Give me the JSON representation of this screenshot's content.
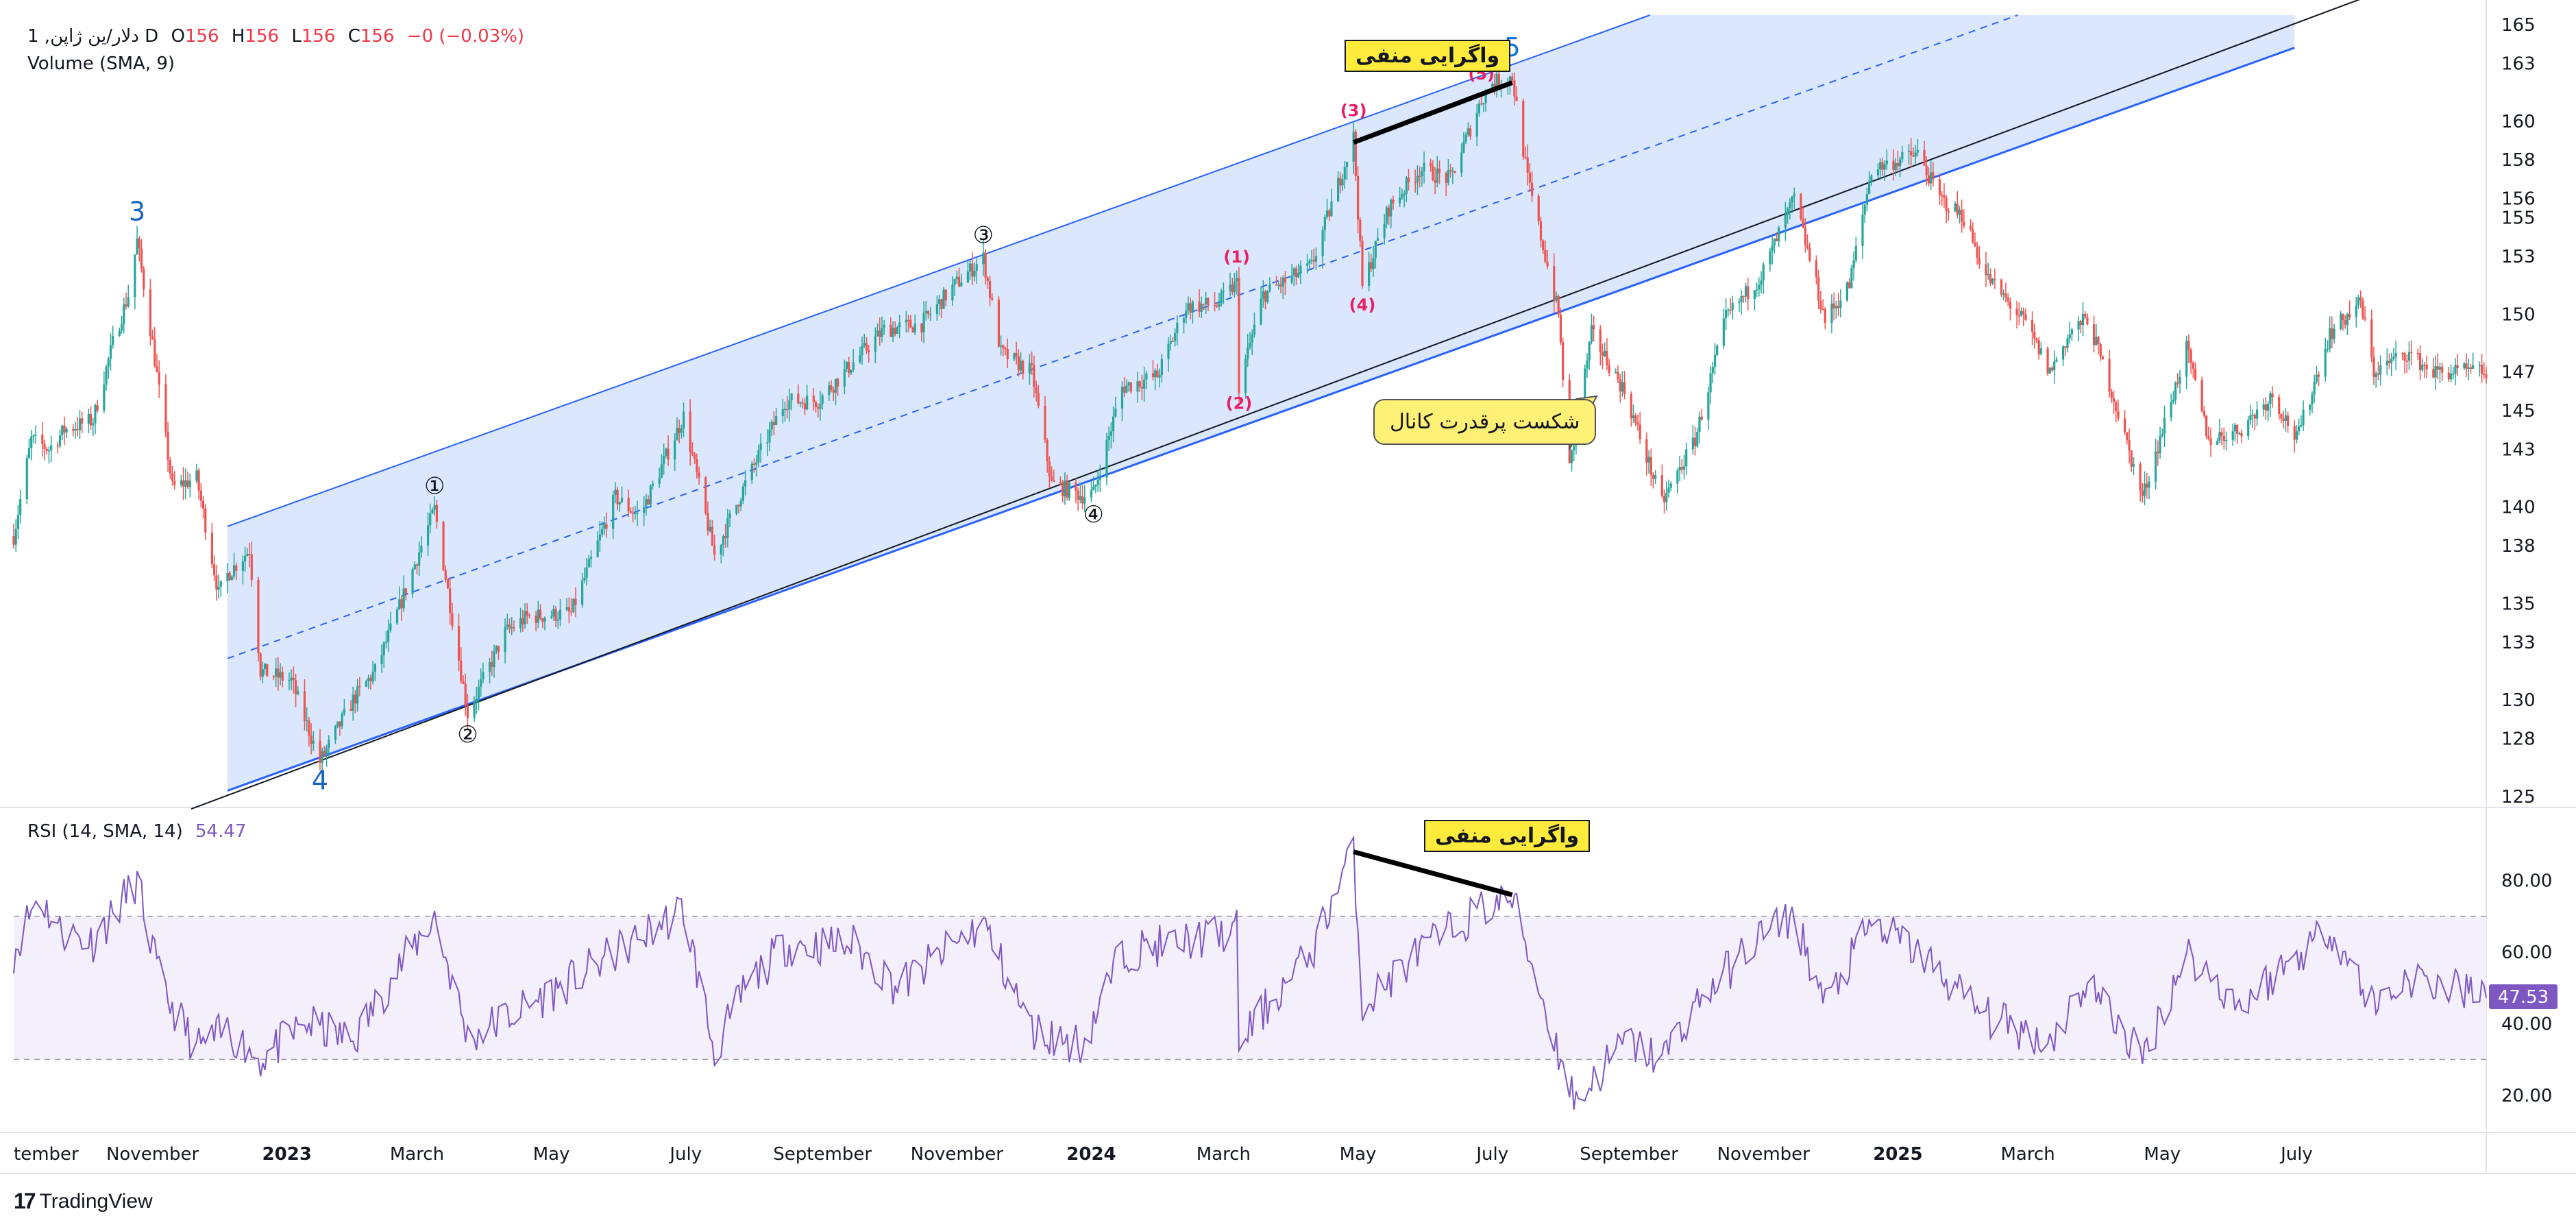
{
  "legend": {
    "symbol": "1 ,دلار/ین ژاپن D",
    "o_label": "O",
    "o_value": "156",
    "h_label": "H",
    "h_value": "156",
    "l_label": "L",
    "l_value": "156",
    "c_label": "C",
    "c_value": "156",
    "change": "−0 (−0.03%)",
    "volume": "Volume (SMA, 9)"
  },
  "rsi_legend": {
    "label": "RSI (14, SMA, 14)",
    "value": "54.47"
  },
  "brand": "TradingView",
  "colors": {
    "up": "#26a69a",
    "down": "#ef5350",
    "channel_fill": "#d6e4fd",
    "channel_line": "#2962ff",
    "rsi_line": "#7e57c2",
    "rsi_band": "#f3effb",
    "callout_bg": "#ffeb3b",
    "bubble_bg": "#fff176",
    "elliott_red": "#e91e63",
    "elliott_blue": "#1565c0"
  },
  "annotations": {
    "divergence_price": "واگرایی منفی",
    "divergence_rsi": "واگرایی منفی",
    "channel_break": "شکست پرقدرت کانال",
    "rsi_last": "47.53"
  },
  "waves": [
    {
      "label": "3",
      "style": "blue",
      "date": "2022-10-25",
      "price": 153.8
    },
    {
      "label": "4",
      "style": "blue",
      "date": "2023-01-16",
      "price": 126.8
    },
    {
      "label": "①",
      "style": "circle",
      "date": "2023-03-09",
      "price": 139.9
    },
    {
      "label": "②",
      "style": "circle",
      "date": "2023-03-24",
      "price": 129.3
    },
    {
      "label": "③",
      "style": "circle",
      "date": "2023-11-13",
      "price": 152.9
    },
    {
      "label": "④",
      "style": "circle",
      "date": "2024-01-02",
      "price": 140.7
    },
    {
      "label": "(1)",
      "style": "red",
      "date": "2024-03-07",
      "price": 151.6
    },
    {
      "label": "(2)",
      "style": "red",
      "date": "2024-03-08",
      "price": 146.3
    },
    {
      "label": "(3)",
      "style": "red",
      "date": "2024-04-29",
      "price": 159.2
    },
    {
      "label": "(4)",
      "style": "red",
      "date": "2024-05-03",
      "price": 151.4
    },
    {
      "label": "(5)",
      "style": "red",
      "date": "2024-06-26",
      "price": 161.1
    },
    {
      "label": "⑤",
      "style": "circle",
      "date": "2024-07-01",
      "price": 162.0
    },
    {
      "label": "5",
      "style": "blue",
      "date": "2024-07-10",
      "price": 162.3
    }
  ],
  "chart_data": [
    {
      "type": "candlestick",
      "x_ticks": [
        {
          "label": "tember",
          "date": "2022-09-01",
          "bold": false
        },
        {
          "label": "November",
          "date": "2022-11-01",
          "bold": false
        },
        {
          "label": "2023",
          "date": "2023-01-01",
          "bold": true
        },
        {
          "label": "March",
          "date": "2023-03-01",
          "bold": false
        },
        {
          "label": "May",
          "date": "2023-05-01",
          "bold": false
        },
        {
          "label": "July",
          "date": "2023-07-01",
          "bold": false
        },
        {
          "label": "September",
          "date": "2023-09-01",
          "bold": false
        },
        {
          "label": "November",
          "date": "2023-11-01",
          "bold": false
        },
        {
          "label": "2024",
          "date": "2024-01-01",
          "bold": true
        },
        {
          "label": "March",
          "date": "2024-03-01",
          "bold": false
        },
        {
          "label": "May",
          "date": "2024-05-01",
          "bold": false
        },
        {
          "label": "July",
          "date": "2024-07-01",
          "bold": false
        },
        {
          "label": "September",
          "date": "2024-09-01",
          "bold": false
        },
        {
          "label": "November",
          "date": "2024-11-01",
          "bold": false
        },
        {
          "label": "2025",
          "date": "2025-01-01",
          "bold": true
        },
        {
          "label": "March",
          "date": "2025-03-01",
          "bold": false
        },
        {
          "label": "May",
          "date": "2025-05-01",
          "bold": false
        },
        {
          "label": "July",
          "date": "2025-07-01",
          "bold": false
        }
      ],
      "x_range": [
        "2022-08-30",
        "2025-09-25"
      ],
      "y_ticks": [
        125,
        128,
        130,
        133,
        135,
        138,
        140,
        143,
        145,
        147,
        150,
        153,
        155,
        156,
        158,
        160,
        163,
        165
      ],
      "y_range": [
        124.5,
        165.5
      ],
      "price_path": [
        [
          "2022-08-30",
          138.5
        ],
        [
          "2022-09-07",
          143.5
        ],
        [
          "2022-09-15",
          143.0
        ],
        [
          "2022-09-22",
          144.0
        ],
        [
          "2022-10-05",
          144.5
        ],
        [
          "2022-10-14",
          148.5
        ],
        [
          "2022-10-21",
          151.0
        ],
        [
          "2022-10-25",
          153.8
        ],
        [
          "2022-11-01",
          148.5
        ],
        [
          "2022-11-10",
          141.0
        ],
        [
          "2022-11-21",
          141.5
        ],
        [
          "2022-12-01",
          135.5
        ],
        [
          "2022-12-05",
          136.5
        ],
        [
          "2022-12-15",
          137.8
        ],
        [
          "2022-12-20",
          131.5
        ],
        [
          "2023-01-03",
          131.0
        ],
        [
          "2023-01-16",
          126.8
        ],
        [
          "2023-01-31",
          130.0
        ],
        [
          "2023-02-10",
          131.5
        ],
        [
          "2023-02-20",
          134.5
        ],
        [
          "2023-03-09",
          139.9
        ],
        [
          "2023-03-24",
          129.3
        ],
        [
          "2023-04-10",
          133.5
        ],
        [
          "2023-04-20",
          134.3
        ],
        [
          "2023-05-10",
          134.5
        ],
        [
          "2023-05-30",
          140.5
        ],
        [
          "2023-06-10",
          139.5
        ],
        [
          "2023-06-30",
          144.7
        ],
        [
          "2023-07-14",
          137.5
        ],
        [
          "2023-07-28",
          141.2
        ],
        [
          "2023-08-15",
          145.5
        ],
        [
          "2023-08-30",
          145.5
        ],
        [
          "2023-09-15",
          147.5
        ],
        [
          "2023-09-29",
          149.2
        ],
        [
          "2023-10-16",
          149.5
        ],
        [
          "2023-10-31",
          151.5
        ],
        [
          "2023-11-13",
          152.9
        ],
        [
          "2023-11-21",
          148.0
        ],
        [
          "2023-12-05",
          147.0
        ],
        [
          "2023-12-14",
          141.2
        ],
        [
          "2023-12-28",
          140.6
        ],
        [
          "2024-01-02",
          140.7
        ],
        [
          "2024-01-15",
          146.2
        ],
        [
          "2024-01-31",
          146.8
        ],
        [
          "2024-02-13",
          150.4
        ],
        [
          "2024-02-27",
          150.5
        ],
        [
          "2024-03-07",
          151.6
        ],
        [
          "2024-03-08",
          146.3
        ],
        [
          "2024-03-19",
          151.0
        ],
        [
          "2024-04-10",
          152.5
        ],
        [
          "2024-04-29",
          159.2
        ],
        [
          "2024-05-03",
          151.4
        ],
        [
          "2024-05-15",
          155.5
        ],
        [
          "2024-05-29",
          157.5
        ],
        [
          "2024-06-12",
          157.0
        ],
        [
          "2024-06-26",
          161.1
        ],
        [
          "2024-07-01",
          162.0
        ],
        [
          "2024-07-10",
          162.3
        ],
        [
          "2024-07-17",
          157.0
        ],
        [
          "2024-07-31",
          150.0
        ],
        [
          "2024-08-05",
          142.0
        ],
        [
          "2024-08-15",
          149.0
        ],
        [
          "2024-08-30",
          146.0
        ],
        [
          "2024-09-16",
          140.2
        ],
        [
          "2024-10-01",
          143.5
        ],
        [
          "2024-10-15",
          149.8
        ],
        [
          "2024-10-31",
          152.0
        ],
        [
          "2024-11-15",
          156.0
        ],
        [
          "2024-11-29",
          149.7
        ],
        [
          "2024-12-10",
          151.5
        ],
        [
          "2024-12-20",
          157.5
        ],
        [
          "2025-01-10",
          158.3
        ],
        [
          "2025-01-20",
          156.0
        ],
        [
          "2025-01-31",
          155.0
        ],
        [
          "2025-02-10",
          152.0
        ],
        [
          "2025-02-28",
          149.5
        ],
        [
          "2025-03-11",
          147.0
        ],
        [
          "2025-03-20",
          149.0
        ],
        [
          "2025-03-28",
          149.8
        ],
        [
          "2025-04-08",
          146.0
        ],
        [
          "2025-04-22",
          140.5
        ],
        [
          "2025-05-12",
          148.2
        ],
        [
          "2025-05-22",
          143.5
        ],
        [
          "2025-06-05",
          144.0
        ],
        [
          "2025-06-20",
          145.8
        ],
        [
          "2025-07-01",
          143.5
        ],
        [
          "2025-07-16",
          149.0
        ],
        [
          "2025-07-30",
          150.6
        ],
        [
          "2025-08-05",
          147.0
        ],
        [
          "2025-08-20",
          148.0
        ],
        [
          "2025-09-01",
          147.0
        ],
        [
          "2025-09-25",
          147.0
        ]
      ],
      "channel": {
        "lower": [
          [
            "2022-12-05",
            125.3
          ],
          [
            "2024-08-05",
            150.3
          ]
        ],
        "upper": [
          [
            "2022-12-05",
            139.0
          ],
          [
            "2024-08-05",
            164.0
          ]
        ],
        "extension_end": "2025-06-30",
        "lower_line_extended_to": [
          "2025-08-10",
          166.8
        ]
      },
      "divergence_line": [
        [
          "2024-04-29",
          158.9
        ],
        [
          "2024-07-10",
          162.0
        ]
      ],
      "last_price": 147.0
    },
    {
      "type": "line",
      "name": "RSI",
      "y_ticks": [
        20.0,
        40.0,
        60.0,
        80.0
      ],
      "y_range": [
        10,
        100
      ],
      "bands": [
        30,
        70
      ],
      "last_value": 47.53,
      "rsi_path": [
        [
          "2022-08-30",
          60
        ],
        [
          "2022-09-10",
          76
        ],
        [
          "2022-09-20",
          66
        ],
        [
          "2022-10-05",
          63
        ],
        [
          "2022-10-25",
          80
        ],
        [
          "2022-11-05",
          50
        ],
        [
          "2022-11-21",
          33
        ],
        [
          "2022-12-05",
          38
        ],
        [
          "2022-12-20",
          30
        ],
        [
          "2023-01-10",
          40
        ],
        [
          "2023-01-31",
          35
        ],
        [
          "2023-02-20",
          55
        ],
        [
          "2023-03-09",
          70
        ],
        [
          "2023-03-24",
          36
        ],
        [
          "2023-04-20",
          45
        ],
        [
          "2023-05-10",
          52
        ],
        [
          "2023-06-05",
          62
        ],
        [
          "2023-06-30",
          72
        ],
        [
          "2023-07-14",
          32
        ],
        [
          "2023-07-28",
          50
        ],
        [
          "2023-08-15",
          62
        ],
        [
          "2023-09-15",
          62
        ],
        [
          "2023-10-05",
          50
        ],
        [
          "2023-11-13",
          68
        ],
        [
          "2023-12-05",
          38
        ],
        [
          "2023-12-28",
          34
        ],
        [
          "2024-01-15",
          60
        ],
        [
          "2024-02-13",
          63
        ],
        [
          "2024-03-07",
          66
        ],
        [
          "2024-03-08",
          35
        ],
        [
          "2024-04-10",
          60
        ],
        [
          "2024-04-29",
          89
        ],
        [
          "2024-05-03",
          45
        ],
        [
          "2024-05-29",
          60
        ],
        [
          "2024-06-26",
          72
        ],
        [
          "2024-07-10",
          75
        ],
        [
          "2024-07-31",
          32
        ],
        [
          "2024-08-08",
          18
        ],
        [
          "2024-08-30",
          35
        ],
        [
          "2024-09-16",
          30
        ],
        [
          "2024-10-01",
          45
        ],
        [
          "2024-10-31",
          65
        ],
        [
          "2024-11-15",
          70
        ],
        [
          "2024-11-29",
          45
        ],
        [
          "2024-12-20",
          68
        ],
        [
          "2025-01-10",
          60
        ],
        [
          "2025-02-10",
          42
        ],
        [
          "2025-03-11",
          35
        ],
        [
          "2025-03-28",
          52
        ],
        [
          "2025-04-22",
          30
        ],
        [
          "2025-05-12",
          60
        ],
        [
          "2025-06-05",
          45
        ],
        [
          "2025-07-16",
          67
        ],
        [
          "2025-08-05",
          45
        ],
        [
          "2025-08-20",
          53
        ],
        [
          "2025-09-25",
          47.5
        ]
      ]
    }
  ]
}
